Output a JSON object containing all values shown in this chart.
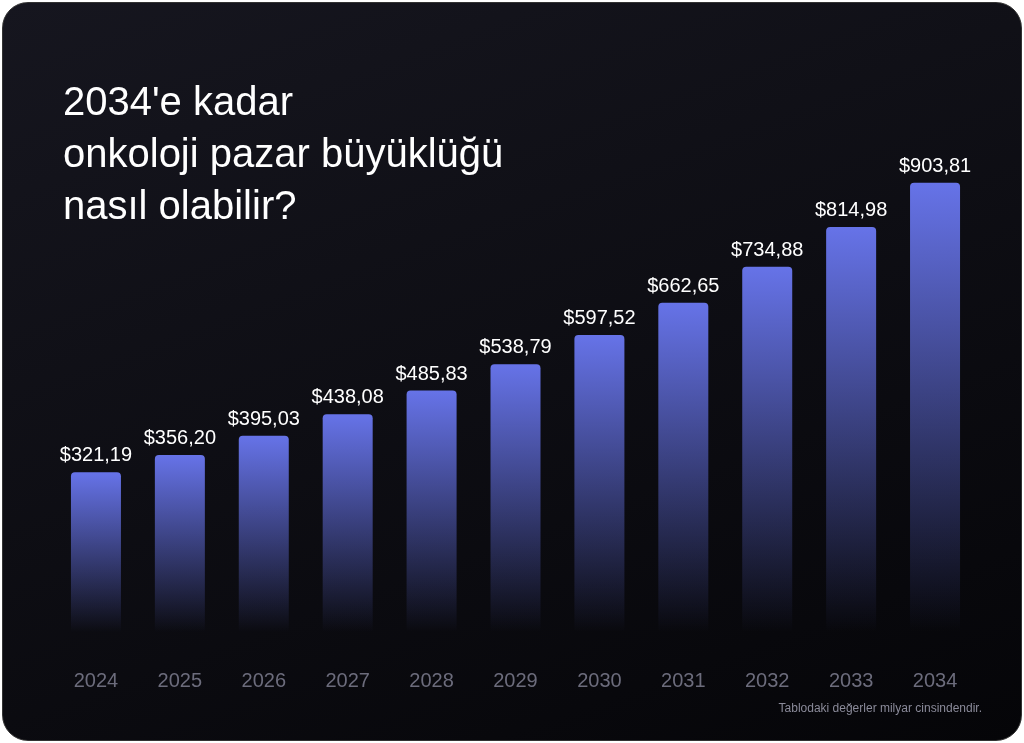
{
  "chart_data": {
    "type": "bar",
    "title": "2034'e kadar\nonkoloji pazar büyüklüğü\nnasıl olabilir?",
    "categories": [
      "2024",
      "2025",
      "2026",
      "2027",
      "2028",
      "2029",
      "2030",
      "2031",
      "2032",
      "2033",
      "2034"
    ],
    "values": [
      321.19,
      356.2,
      395.03,
      438.08,
      485.83,
      538.79,
      597.52,
      662.65,
      734.88,
      814.98,
      903.81
    ],
    "value_labels": [
      "$321,19",
      "$356,20",
      "$395,03",
      "$438,08",
      "$485,83",
      "$538,79",
      "$597,52",
      "$662,65",
      "$734,88",
      "$814,98",
      "$903,81"
    ],
    "color": "#6673e8",
    "tick_labels": "x",
    "grid": false,
    "annotations": [
      "Tablodaki değerler milyar cinsindendir."
    ]
  }
}
